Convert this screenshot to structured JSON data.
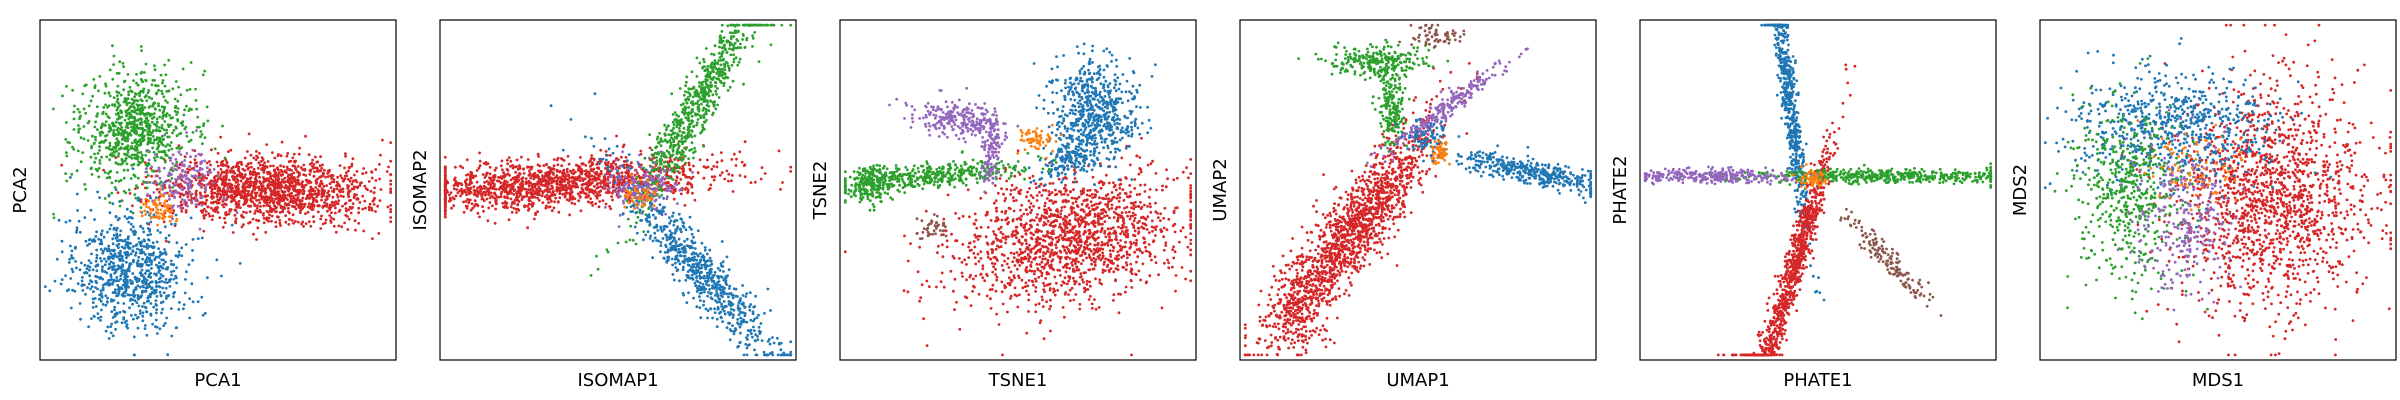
{
  "chart_data": [
    {
      "type": "scatter",
      "xlabel": "PCA1",
      "ylabel": "PCA2",
      "xlim": [
        -10,
        10
      ],
      "ylim": [
        -10,
        10
      ],
      "grid": false,
      "ticks": false,
      "clusters": [
        {
          "color": "#d62728",
          "x": 2.8,
          "y": 0.0,
          "sx": 2.9,
          "sy": 1.0,
          "n": 1500
        },
        {
          "color": "#2ca02c",
          "x": -4.6,
          "y": 3.6,
          "sx": 1.5,
          "sy": 1.7,
          "angle": -38,
          "n": 800
        },
        {
          "color": "#1f77b4",
          "x": -5.0,
          "y": -4.8,
          "sx": 1.6,
          "sy": 1.7,
          "angle": 35,
          "n": 800
        },
        {
          "color": "#9467bd",
          "x": -2.0,
          "y": 0.5,
          "sx": 0.9,
          "sy": 1.0,
          "n": 160
        },
        {
          "color": "#ff7f0e",
          "x": -3.2,
          "y": -1.2,
          "sx": 0.5,
          "sy": 0.5,
          "n": 60
        }
      ]
    },
    {
      "type": "scatter",
      "xlabel": "ISOMAP1",
      "ylabel": "ISOMAP2",
      "xlim": [
        -10,
        10
      ],
      "ylim": [
        -10,
        10
      ],
      "grid": false,
      "ticks": false,
      "clusters": [
        {
          "color": "#d62728",
          "x": -3.5,
          "y": 0.4,
          "sx": 4.5,
          "sy": 0.7,
          "angle": 4,
          "n": 1500
        },
        {
          "color": "#2ca02c",
          "x": 4.3,
          "y": 4.8,
          "sx": 3.8,
          "sy": 0.55,
          "angle": 62,
          "n": 700
        },
        {
          "color": "#1f77b4",
          "x": 4.5,
          "y": -4.6,
          "sx": 3.8,
          "sy": 0.65,
          "angle": -52,
          "n": 700
        },
        {
          "color": "#9467bd",
          "x": 1.2,
          "y": 0.2,
          "sx": 1.0,
          "sy": 0.7,
          "n": 160
        },
        {
          "color": "#ff7f0e",
          "x": 1.3,
          "y": -0.3,
          "sx": 0.5,
          "sy": 0.4,
          "n": 50
        }
      ]
    },
    {
      "type": "scatter",
      "xlabel": "TSNE1",
      "ylabel": "TSNE2",
      "xlim": [
        -10,
        10
      ],
      "ylim": [
        -10,
        10
      ],
      "grid": false,
      "ticks": false,
      "clusters": [
        {
          "color": "#d62728",
          "x": 2.8,
          "y": -2.8,
          "sx": 3.2,
          "sy": 1.8,
          "angle": 12,
          "n": 1500
        },
        {
          "color": "#1f77b4",
          "x": 4.3,
          "y": 4.5,
          "sx": 1.2,
          "sy": 1.5,
          "n": 600
        },
        {
          "color": "#1f77b4",
          "x": 2.8,
          "y": 1.8,
          "sx": 1.0,
          "sy": 0.5,
          "angle": 30,
          "n": 150
        },
        {
          "color": "#2ca02c",
          "x": -5.5,
          "y": 0.8,
          "sx": 2.9,
          "sy": 0.35,
          "angle": 6,
          "n": 450
        },
        {
          "color": "#2ca02c",
          "x": -8.4,
          "y": 0.2,
          "sx": 0.5,
          "sy": 0.6,
          "n": 150
        },
        {
          "color": "#9467bd",
          "x": -3.2,
          "y": 4.1,
          "sx": 1.3,
          "sy": 0.5,
          "angle": -8,
          "n": 250
        },
        {
          "color": "#9467bd",
          "x": -1.5,
          "y": 2.3,
          "sx": 0.25,
          "sy": 1.0,
          "n": 120
        },
        {
          "color": "#ff7f0e",
          "x": 1.1,
          "y": 3.0,
          "sx": 0.5,
          "sy": 0.35,
          "n": 60
        },
        {
          "color": "#8c564b",
          "x": -4.8,
          "y": -2.3,
          "sx": 0.45,
          "sy": 0.4,
          "n": 40
        }
      ]
    },
    {
      "type": "scatter",
      "xlabel": "UMAP1",
      "ylabel": "UMAP2",
      "xlim": [
        -10,
        10
      ],
      "ylim": [
        -10,
        10
      ],
      "grid": false,
      "ticks": false,
      "clusters": [
        {
          "color": "#d62728",
          "x": -3.6,
          "y": -2.2,
          "sx": 3.7,
          "sy": 0.85,
          "angle": 55,
          "n": 1400
        },
        {
          "color": "#d62728",
          "x": -6.8,
          "y": -7.2,
          "sx": 0.9,
          "sy": 1.3,
          "n": 200
        },
        {
          "color": "#1f77b4",
          "x": 6.5,
          "y": 1.0,
          "sx": 2.2,
          "sy": 0.35,
          "angle": -12,
          "n": 400
        },
        {
          "color": "#2ca02c",
          "x": -2.3,
          "y": 7.6,
          "sx": 1.4,
          "sy": 0.45,
          "n": 250
        },
        {
          "color": "#2ca02c",
          "x": -1.5,
          "y": 5.0,
          "sx": 0.35,
          "sy": 1.2,
          "n": 200
        },
        {
          "color": "#9467bd",
          "x": 1.8,
          "y": 5.0,
          "sx": 2.2,
          "sy": 0.3,
          "angle": 38,
          "n": 250
        },
        {
          "color": "#1f77b4",
          "x": 0.5,
          "y": 3.1,
          "sx": 0.6,
          "sy": 0.5,
          "n": 80
        },
        {
          "color": "#ff7f0e",
          "x": 1.2,
          "y": 2.2,
          "sx": 0.4,
          "sy": 0.35,
          "n": 50
        },
        {
          "color": "#8c564b",
          "x": 1.0,
          "y": 9.0,
          "sx": 0.7,
          "sy": 0.35,
          "n": 60
        }
      ]
    },
    {
      "type": "scatter",
      "xlabel": "PHATE1",
      "ylabel": "PHATE2",
      "xlim": [
        -10,
        10
      ],
      "ylim": [
        -10,
        10
      ],
      "grid": false,
      "ticks": false,
      "clusters": [
        {
          "color": "#1f77b4",
          "x": -1.6,
          "y": 5.3,
          "sx": 4.3,
          "sy": 0.22,
          "angle": 97,
          "n": 600
        },
        {
          "color": "#d62728",
          "x": -1.5,
          "y": -5.0,
          "sx": 4.3,
          "sy": 0.3,
          "angle": 74,
          "n": 900
        },
        {
          "color": "#2ca02c",
          "x": 4.2,
          "y": 0.8,
          "sx": 4.2,
          "sy": 0.2,
          "n": 500
        },
        {
          "color": "#9467bd",
          "x": -6.0,
          "y": 0.8,
          "sx": 2.4,
          "sy": 0.2,
          "n": 300
        },
        {
          "color": "#8c564b",
          "x": 4.0,
          "y": -4.2,
          "sx": 1.8,
          "sy": 0.3,
          "angle": -48,
          "n": 150
        },
        {
          "color": "#ff7f0e",
          "x": -0.4,
          "y": 0.6,
          "sx": 0.4,
          "sy": 0.3,
          "n": 60
        }
      ]
    },
    {
      "type": "scatter",
      "xlabel": "MDS1",
      "ylabel": "MDS2",
      "xlim": [
        -10,
        10
      ],
      "ylim": [
        -10,
        10
      ],
      "grid": false,
      "ticks": false,
      "clusters": [
        {
          "color": "#d62728",
          "x": 3.0,
          "y": -0.3,
          "sx": 2.8,
          "sy": 3.4,
          "n": 1500
        },
        {
          "color": "#1f77b4",
          "x": -2.5,
          "y": 3.8,
          "sx": 2.8,
          "sy": 1.6,
          "n": 700
        },
        {
          "color": "#2ca02c",
          "x": -5.0,
          "y": -0.4,
          "sx": 1.6,
          "sy": 2.6,
          "n": 500
        },
        {
          "color": "#9467bd",
          "x": -2.0,
          "y": -1.5,
          "sx": 1.3,
          "sy": 2.2,
          "n": 300
        },
        {
          "color": "#ff7f0e",
          "x": -1.5,
          "y": 1.5,
          "sx": 1.5,
          "sy": 1.2,
          "n": 80
        }
      ]
    }
  ]
}
